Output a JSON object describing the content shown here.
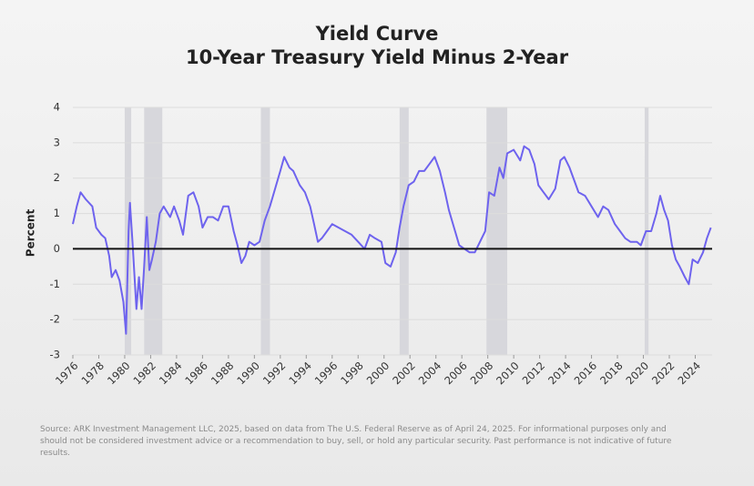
{
  "chart_data": {
    "type": "line",
    "title": "Yield Curve",
    "subtitle": "10-Year Treasury Yield Minus 2-Year",
    "ylabel": "Percent",
    "color": "#6e63ee",
    "x": [
      1976,
      1976.3,
      1976.6,
      1977,
      1977.5,
      1977.8,
      1978.2,
      1978.5,
      1978.8,
      1979,
      1979.3,
      1979.6,
      1979.9,
      1980.1,
      1980.3,
      1980.4,
      1980.6,
      1980.9,
      1981.1,
      1981.3,
      1981.5,
      1981.7,
      1981.9,
      1982.1,
      1982.4,
      1982.7,
      1983,
      1983.5,
      1983.8,
      1984.2,
      1984.5,
      1984.9,
      1985.3,
      1985.7,
      1986,
      1986.4,
      1986.8,
      1987.2,
      1987.6,
      1988,
      1988.4,
      1988.7,
      1989,
      1989.3,
      1989.6,
      1990,
      1990.4,
      1990.8,
      1991.2,
      1991.6,
      1992,
      1992.3,
      1992.7,
      1993,
      1993.5,
      1993.9,
      1994.3,
      1994.6,
      1994.9,
      1995.2,
      1995.6,
      1996,
      1996.5,
      1997,
      1997.5,
      1998,
      1998.5,
      1998.9,
      1999.3,
      1999.8,
      2000.1,
      2000.5,
      2000.9,
      2001.2,
      2001.5,
      2001.9,
      2002.3,
      2002.7,
      2003.1,
      2003.5,
      2003.9,
      2004.3,
      2004.7,
      2005,
      2005.4,
      2005.8,
      2006.2,
      2006.6,
      2007,
      2007.4,
      2007.8,
      2008.1,
      2008.5,
      2008.9,
      2009.2,
      2009.5,
      2010,
      2010.5,
      2010.8,
      2011.2,
      2011.6,
      2011.9,
      2012.3,
      2012.7,
      2013.2,
      2013.6,
      2013.9,
      2014.3,
      2014.7,
      2015,
      2015.5,
      2016,
      2016.5,
      2016.9,
      2017.3,
      2017.8,
      2018.2,
      2018.6,
      2019,
      2019.5,
      2019.8,
      2020.2,
      2020.6,
      2021,
      2021.3,
      2021.6,
      2021.9,
      2022.2,
      2022.5,
      2022.8,
      2023.2,
      2023.5,
      2023.8,
      2024.2,
      2024.6,
      2024.9,
      2025.2
    ],
    "values": [
      0.7,
      1.2,
      1.6,
      1.4,
      1.2,
      0.6,
      0.4,
      0.3,
      -0.2,
      -0.8,
      -0.6,
      -0.9,
      -1.5,
      -2.4,
      0.5,
      1.3,
      0.2,
      -1.7,
      -0.8,
      -1.7,
      -0.5,
      0.9,
      -0.6,
      -0.3,
      0.2,
      1.0,
      1.2,
      0.9,
      1.2,
      0.8,
      0.4,
      1.5,
      1.6,
      1.2,
      0.6,
      0.9,
      0.9,
      0.8,
      1.2,
      1.2,
      0.5,
      0.1,
      -0.4,
      -0.2,
      0.2,
      0.1,
      0.2,
      0.8,
      1.2,
      1.7,
      2.2,
      2.6,
      2.3,
      2.2,
      1.8,
      1.6,
      1.2,
      0.7,
      0.2,
      0.3,
      0.5,
      0.7,
      0.6,
      0.5,
      0.4,
      0.2,
      0.0,
      0.4,
      0.3,
      0.2,
      -0.4,
      -0.5,
      -0.1,
      0.6,
      1.2,
      1.8,
      1.9,
      2.2,
      2.2,
      2.4,
      2.6,
      2.2,
      1.6,
      1.1,
      0.6,
      0.1,
      0.0,
      -0.1,
      -0.1,
      0.2,
      0.5,
      1.6,
      1.5,
      2.3,
      2.0,
      2.7,
      2.8,
      2.5,
      2.9,
      2.8,
      2.4,
      1.8,
      1.6,
      1.4,
      1.7,
      2.5,
      2.6,
      2.3,
      1.9,
      1.6,
      1.5,
      1.2,
      0.9,
      1.2,
      1.1,
      0.7,
      0.5,
      0.3,
      0.2,
      0.2,
      0.1,
      0.5,
      0.5,
      1.0,
      1.5,
      1.1,
      0.8,
      0.1,
      -0.3,
      -0.5,
      -0.8,
      -1.0,
      -0.3,
      -0.4,
      -0.1,
      0.3,
      0.6
    ],
    "recessions": [
      [
        1980,
        1980.5
      ],
      [
        1981.5,
        1982.9
      ],
      [
        1990.5,
        1991.2
      ],
      [
        2001.2,
        2001.9
      ],
      [
        2007.9,
        2009.5
      ],
      [
        2020.1,
        2020.4
      ]
    ],
    "xlim": [
      1976,
      2025.3
    ],
    "xticks": [
      1976,
      1978,
      1980,
      1982,
      1984,
      1986,
      1988,
      1990,
      1992,
      1994,
      1996,
      1998,
      2000,
      2002,
      2004,
      2006,
      2008,
      2010,
      2012,
      2014,
      2016,
      2018,
      2020,
      2022,
      2024
    ],
    "ylim": [
      -3,
      4
    ],
    "yticks": [
      -3,
      -2,
      -1,
      0,
      1,
      2,
      3,
      4
    ],
    "grid": true,
    "footnote": [
      "Source: ARK Investment Management LLC, 2025, based on data from The U.S. Federal Reserve as of April 24, 2025. For informational purposes only and",
      "should not be considered investment advice or a recommendation to buy, sell, or hold any particular security. Past performance is not indicative of future",
      "results."
    ]
  }
}
